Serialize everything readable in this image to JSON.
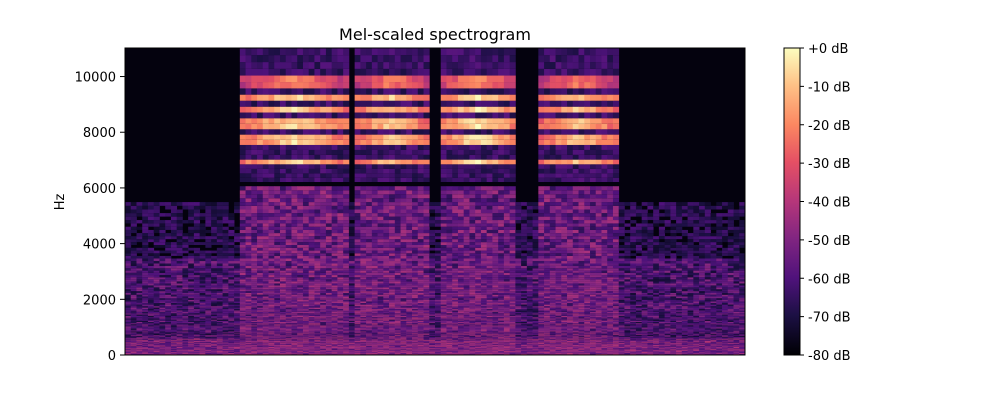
{
  "chart_data": {
    "type": "heatmap",
    "title": "Mel-scaled spectrogram",
    "xlabel": "",
    "ylabel": "Hz",
    "y_range": [
      0,
      11025
    ],
    "y_ticks": [
      0,
      2000,
      4000,
      6000,
      8000,
      10000
    ],
    "y_tick_labels": [
      "0",
      "2000",
      "4000",
      "6000",
      "8000",
      "10000"
    ],
    "x_ticks": [],
    "colormap": "magma",
    "colorbar": {
      "range": [
        -80,
        0
      ],
      "ticks": [
        0,
        -10,
        -20,
        -30,
        -40,
        -50,
        -60,
        -70,
        -80
      ],
      "labels": [
        "+0 dB",
        "-10 dB",
        "-20 dB",
        "-30 dB",
        "-40 dB",
        "-50 dB",
        "-60 dB",
        "-70 dB",
        "-80 dB"
      ]
    },
    "n_time_frames": 108,
    "n_mel_bins": 128,
    "noise_floor_db": -80,
    "events": [
      {
        "start_frame": 20,
        "end_frame": 38,
        "harmonic_peak_db": -3
      },
      {
        "start_frame": 40,
        "end_frame": 52,
        "harmonic_peak_db": -5
      },
      {
        "start_frame": 55,
        "end_frame": 67,
        "harmonic_peak_db": -1
      },
      {
        "start_frame": 72,
        "end_frame": 85,
        "harmonic_peak_db": -6
      }
    ],
    "harmonic_bands_hz": [
      6950,
      7600,
      7800,
      8250,
      8400,
      8850,
      9300,
      9650,
      10000,
      10500
    ],
    "low_energy_band_hz": [
      0,
      600
    ],
    "mid_energy_band_hz": [
      3500,
      5500
    ]
  }
}
